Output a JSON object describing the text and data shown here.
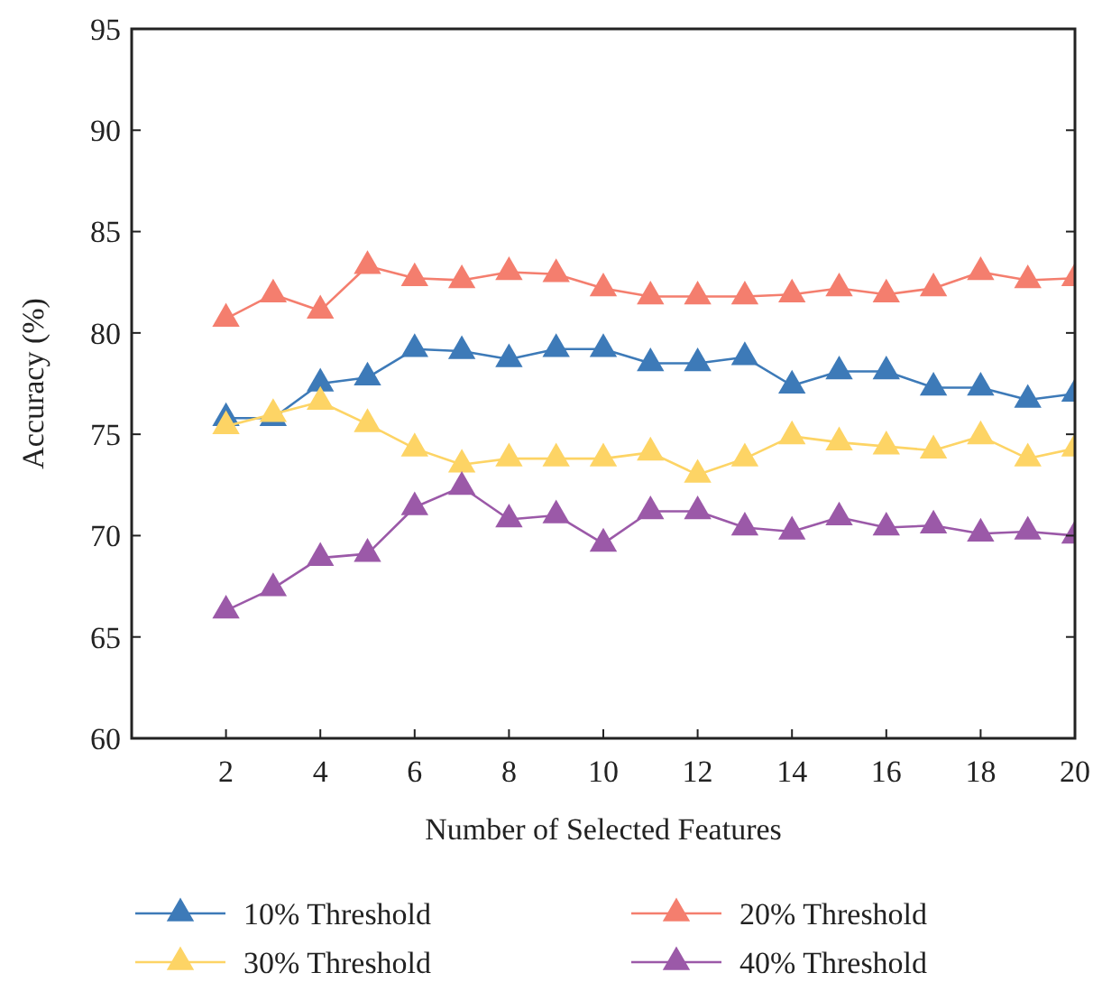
{
  "chart_data": {
    "type": "line",
    "xlabel": "Number of Selected Features",
    "ylabel": "Accuracy (%)",
    "x": [
      2,
      3,
      4,
      5,
      6,
      7,
      8,
      9,
      10,
      11,
      12,
      13,
      14,
      15,
      16,
      17,
      18,
      19,
      20
    ],
    "xlim": [
      0,
      20
    ],
    "xticks": [
      2,
      4,
      6,
      8,
      10,
      12,
      14,
      16,
      18,
      20
    ],
    "ylim": [
      60,
      95
    ],
    "yticks": [
      60,
      65,
      70,
      75,
      80,
      85,
      90,
      95
    ],
    "marker": "triangle",
    "line_style": "solid",
    "grid": false,
    "legend": "bottom",
    "series": [
      {
        "name": "10% Threshold",
        "color": "#3d7ab8",
        "values": [
          75.8,
          75.8,
          77.5,
          77.8,
          79.2,
          79.1,
          78.7,
          79.2,
          79.2,
          78.5,
          78.5,
          78.8,
          77.4,
          78.1,
          78.1,
          77.3,
          77.3,
          76.7,
          77.0
        ]
      },
      {
        "name": "20% Threshold",
        "color": "#f47e6e",
        "values": [
          80.7,
          81.9,
          81.1,
          83.3,
          82.7,
          82.6,
          83.0,
          82.9,
          82.2,
          81.8,
          81.8,
          81.8,
          81.9,
          82.2,
          81.9,
          82.2,
          83.0,
          82.6,
          82.7
        ]
      },
      {
        "name": "30% Threshold",
        "color": "#fdd465",
        "values": [
          75.4,
          76.0,
          76.6,
          75.5,
          74.3,
          73.5,
          73.8,
          73.8,
          73.8,
          74.1,
          73.0,
          73.8,
          74.9,
          74.6,
          74.4,
          74.2,
          74.9,
          73.8,
          74.3
        ]
      },
      {
        "name": "40% Threshold",
        "color": "#9b59a8",
        "values": [
          66.3,
          67.4,
          68.9,
          69.1,
          71.4,
          72.4,
          70.8,
          71.0,
          69.6,
          71.2,
          71.2,
          70.4,
          70.2,
          70.9,
          70.4,
          70.5,
          70.1,
          70.2,
          70.0
        ]
      }
    ]
  }
}
